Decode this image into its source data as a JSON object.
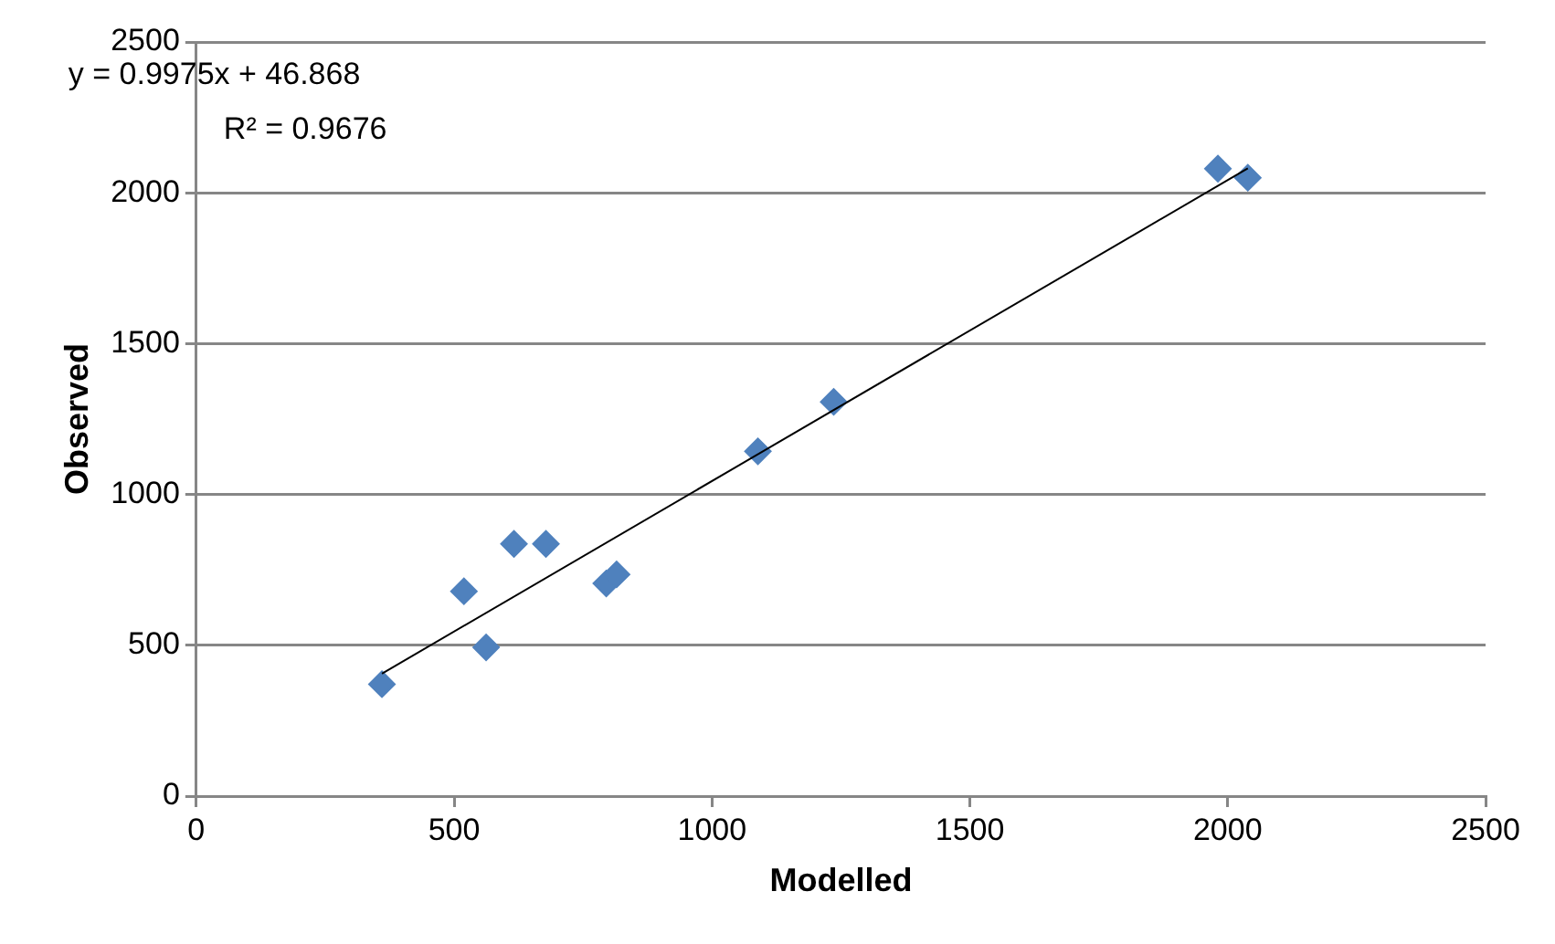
{
  "chart_data": {
    "type": "scatter",
    "xlabel": "Modelled",
    "ylabel": "Observed",
    "annotations": [
      "y = 0.9975x + 46.868",
      "R² = 0.9676"
    ],
    "series": [
      {
        "type": "scatter",
        "marker": "diamond",
        "color": "#4f81bd",
        "x": [
          360,
          519,
          562,
          616,
          678,
          795,
          815,
          1089,
          1236,
          1981,
          2039
        ],
        "values": [
          371,
          679,
          493,
          836,
          836,
          705,
          735,
          1143,
          1307,
          2080,
          2050
        ]
      },
      {
        "type": "line",
        "marker": "none",
        "color": "#000000",
        "x": [
          360,
          2039
        ],
        "values": [
          406,
          2081
        ]
      }
    ],
    "xlim": [
      0,
      2500
    ],
    "ylim": [
      0,
      2500
    ],
    "xticks": [
      0,
      500,
      1000,
      1500,
      2000,
      2500
    ],
    "yticks": [
      0,
      500,
      1000,
      1500,
      2000,
      2500
    ],
    "grid": "y",
    "legend": false
  }
}
